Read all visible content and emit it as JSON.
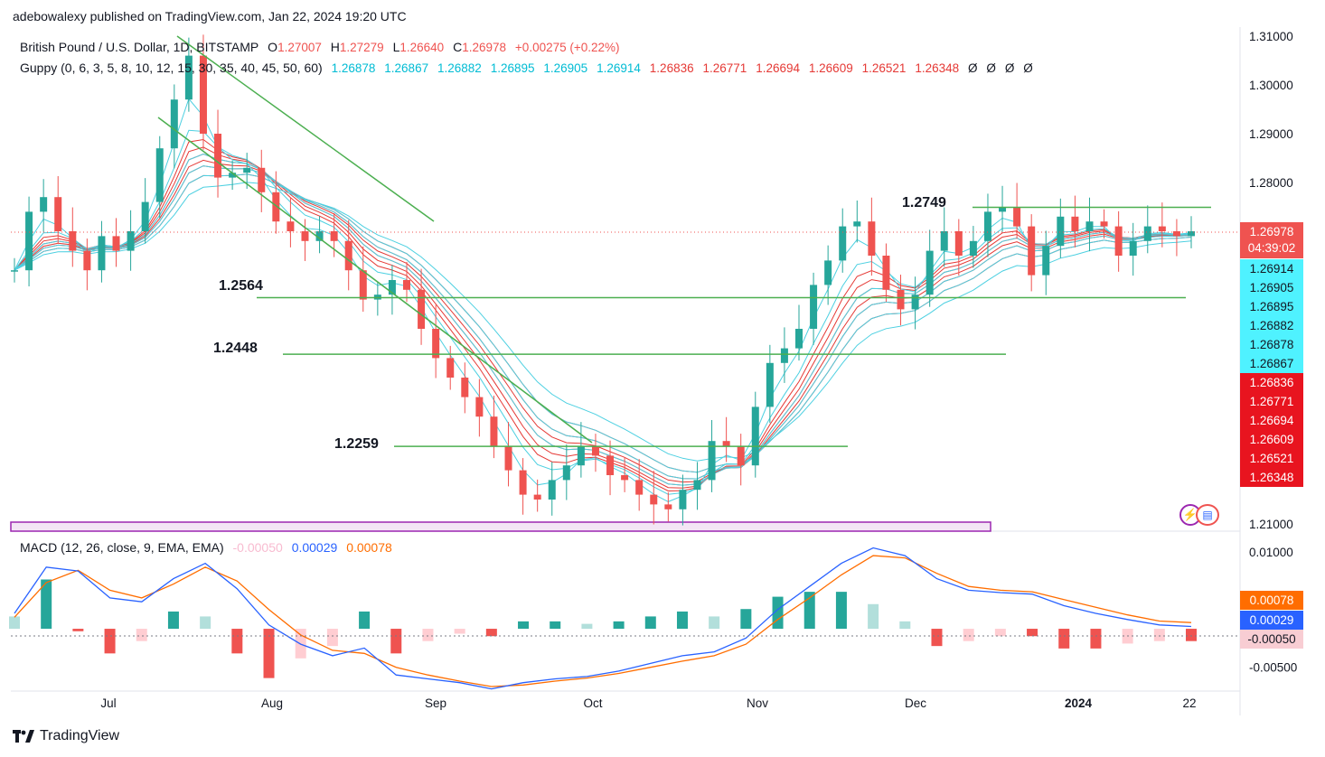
{
  "header": {
    "published": "adebowalexy published on TradingView.com, Jan 22, 2024 19:20 UTC"
  },
  "legend": {
    "symbol": "British Pound / U.S. Dollar, 1D, BITSTAMP",
    "open_label": "O",
    "open": "1.27007",
    "high_label": "H",
    "high": "1.27279",
    "low_label": "L",
    "low": "1.26640",
    "close_label": "C",
    "close": "1.26978",
    "change": "+0.00275 (+0.22%)",
    "guppy_label": "Guppy (0, 6, 3, 5, 8, 10, 12, 15, 30, 35, 40, 45, 50, 60)",
    "guppy_fast": [
      "1.26878",
      "1.26867",
      "1.26882",
      "1.26895",
      "1.26905",
      "1.26914"
    ],
    "guppy_slow": [
      "1.26836",
      "1.26771",
      "1.26694",
      "1.26609",
      "1.26521",
      "1.26348"
    ],
    "guppy_empty": [
      "Ø",
      "Ø",
      "Ø",
      "Ø"
    ]
  },
  "levels": [
    {
      "label": "1.2749"
    },
    {
      "label": "1.2564"
    },
    {
      "label": "1.2448"
    },
    {
      "label": "1.2259"
    }
  ],
  "price_tags": {
    "current": "1.26978",
    "countdown": "04:39:02",
    "fast": [
      "1.26914",
      "1.26905",
      "1.26895",
      "1.26882",
      "1.26878",
      "1.26867"
    ],
    "slow": [
      "1.26836",
      "1.26771",
      "1.26694",
      "1.26609",
      "1.26521",
      "1.26348"
    ]
  },
  "macd_tags": {
    "signal": "0.00078",
    "macd": "0.00029",
    "hist": "-0.00050"
  },
  "macd_legend": {
    "label": "MACD (12, 26, close, 9, EMA, EMA)",
    "hist": "-0.00050",
    "macd": "0.00029",
    "signal": "0.00078"
  },
  "footer": {
    "brand": "TradingView"
  },
  "colors": {
    "up": "#26a69a",
    "down": "#ef5350",
    "fast_ema": "#4dd0e1",
    "slow_ema": "#e53935",
    "trendline": "#4caf50",
    "range_box": "#9c27b0",
    "macd": "#2962ff",
    "signal": "#ff6d00"
  },
  "chart_data": [
    {
      "type": "candlestick",
      "title": "British Pound / U.S. Dollar, 1D, BITSTAMP",
      "x_ticks": [
        "Jul",
        "Aug",
        "Sep",
        "Oct",
        "Nov",
        "Dec",
        "2024",
        "22"
      ],
      "y_ticks": [
        "1.31000",
        "1.30000",
        "1.29000",
        "1.28000",
        "1.21000"
      ],
      "ylim": [
        1.208,
        1.312
      ],
      "grid": false,
      "series": [
        {
          "name": "close",
          "values": [
            1.262,
            1.274,
            1.277,
            1.27,
            1.266,
            1.262,
            1.269,
            1.266,
            1.27,
            1.276,
            1.287,
            1.297,
            1.306,
            1.29,
            1.281,
            1.282,
            1.283,
            1.278,
            1.272,
            1.27,
            1.268,
            1.27,
            1.268,
            1.262,
            1.256,
            1.257,
            1.26,
            1.258,
            1.25,
            1.244,
            1.24,
            1.236,
            1.232,
            1.226,
            1.221,
            1.216,
            1.215,
            1.219,
            1.222,
            1.226,
            1.224,
            1.22,
            1.219,
            1.216,
            1.214,
            1.213,
            1.217,
            1.219,
            1.227,
            1.226,
            1.222,
            1.234,
            1.243,
            1.246,
            1.25,
            1.259,
            1.264,
            1.271,
            1.272,
            1.265,
            1.258,
            1.254,
            1.257,
            1.266,
            1.27,
            1.265,
            1.268,
            1.274,
            1.275,
            1.271,
            1.261,
            1.267,
            1.273,
            1.27,
            1.272,
            1.271,
            1.265,
            1.268,
            1.271,
            1.27,
            1.269,
            1.27
          ]
        }
      ],
      "levels": [
        {
          "label": "1.2749",
          "value": 1.2749
        },
        {
          "label": "1.2564",
          "value": 1.2564
        },
        {
          "label": "1.2448",
          "value": 1.2448
        },
        {
          "label": "1.2259",
          "value": 1.2259
        }
      ],
      "last_price": 1.26978
    },
    {
      "type": "line",
      "title": "MACD (12, 26, close, 9, EMA, EMA)",
      "y_ticks": [
        "0.01000",
        "-0.00500"
      ],
      "ylim": [
        -0.0075,
        0.0115
      ],
      "series": [
        {
          "name": "MACD",
          "values": [
            0.002,
            0.008,
            0.0075,
            0.004,
            0.0035,
            0.0065,
            0.0085,
            0.0052,
            0.0005,
            -0.002,
            -0.0035,
            -0.0025,
            -0.006,
            -0.0065,
            -0.007,
            -0.0078,
            -0.007,
            -0.0065,
            -0.0062,
            -0.0055,
            -0.0045,
            -0.0035,
            -0.003,
            -0.0012,
            0.0025,
            0.0055,
            0.0085,
            0.0105,
            0.0095,
            0.0065,
            0.005,
            0.0047,
            0.0045,
            0.003,
            0.002,
            0.0012,
            0.0005,
            0.0003
          ]
        },
        {
          "name": "Signal",
          "values": [
            0.0015,
            0.006,
            0.0076,
            0.005,
            0.004,
            0.0058,
            0.008,
            0.0062,
            0.0025,
            -0.0008,
            -0.0028,
            -0.0032,
            -0.005,
            -0.006,
            -0.0068,
            -0.0075,
            -0.0073,
            -0.0068,
            -0.0064,
            -0.0058,
            -0.005,
            -0.0042,
            -0.0035,
            -0.002,
            0.0012,
            0.004,
            0.007,
            0.0095,
            0.0092,
            0.0072,
            0.0055,
            0.005,
            0.0048,
            0.0038,
            0.0028,
            0.0018,
            0.001,
            0.0008
          ]
        }
      ]
    }
  ]
}
